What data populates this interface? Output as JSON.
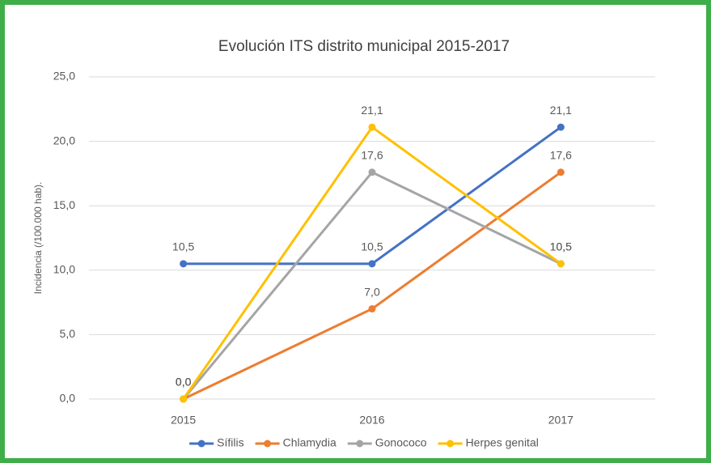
{
  "chart_data": {
    "type": "line",
    "title": "Evolución ITS distrito municipal 2015-2017",
    "y_label": "Incidencia (/100.000 hab).",
    "categories": [
      "2015",
      "2016",
      "2017"
    ],
    "series": [
      {
        "name": "Sífilis",
        "color": "#4472c4",
        "values": [
          10.5,
          10.5,
          21.1
        ],
        "value_labels": [
          "10,5",
          "10,5",
          "21,1"
        ]
      },
      {
        "name": "Chlamydia",
        "color": "#ed7d31",
        "values": [
          0,
          7.0,
          17.6
        ],
        "value_labels": [
          "0,0",
          "7,0",
          "17,6"
        ]
      },
      {
        "name": "Gonococo",
        "color": "#a5a5a5",
        "values": [
          0,
          17.6,
          10.5
        ],
        "value_labels": [
          "0,0",
          "17,6",
          "10,5"
        ]
      },
      {
        "name": "Herpes genital",
        "color": "#ffc000",
        "values": [
          0,
          21.1,
          10.5
        ],
        "value_labels": [
          "0,0",
          "21,1",
          "10,5"
        ]
      }
    ],
    "ylim": [
      0,
      25
    ],
    "yticks": [
      {
        "value": 0,
        "label": "0,0"
      },
      {
        "value": 5,
        "label": "5,0"
      },
      {
        "value": 10,
        "label": "10,0"
      },
      {
        "value": 15,
        "label": "15,0"
      },
      {
        "value": 20,
        "label": "20,0"
      },
      {
        "value": 25,
        "label": "25,0"
      }
    ],
    "grid": true,
    "legend": "bottom"
  }
}
